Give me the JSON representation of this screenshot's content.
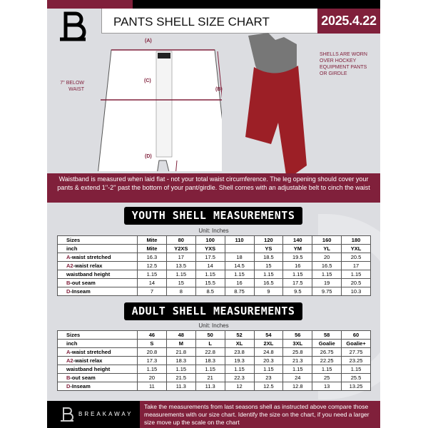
{
  "header": {
    "title": "PANTS SHELL SIZE CHART",
    "date": "2025.4.22"
  },
  "diagram": {
    "label_a": "(A)",
    "label_b": "(B)",
    "label_c": "(C)",
    "label_d": "(D)",
    "below_waist": "7'' BELOW WAIST",
    "note": "SHELLS ARE WORN OVER HOCKEY EQUIPMENT PANTS OR GIRDLE"
  },
  "banner": "Waistband is measured when laid flat - not your total waist circumference. The leg opening should cover your pants & extend 1''-2'' past the bottom of your pant/girdle. Shell comes with an adjustable belt to cinch the waist",
  "youth": {
    "title": "YOUTH SHELL MEASUREMENTS",
    "unit": "Unit: Inches",
    "rows": [
      [
        "Sizes",
        "Mite",
        "80",
        "100",
        "110",
        "120",
        "140",
        "160",
        "180"
      ],
      [
        "inch",
        "Mite",
        "Y2XS",
        "YXS",
        "",
        "YS",
        "YM",
        "YL",
        "YXL"
      ],
      [
        "A-waist stretched",
        "16.3",
        "17",
        "17.5",
        "18",
        "18.5",
        "19.5",
        "20",
        "20.5"
      ],
      [
        "A2-waist relax",
        "12.5",
        "13.5",
        "14",
        "14.5",
        "15",
        "16",
        "16.5",
        "17"
      ],
      [
        "waistband height",
        "1.15",
        "1.15",
        "1.15",
        "1.15",
        "1.15",
        "1.15",
        "1.15",
        "1.15"
      ],
      [
        "B-out seam",
        "14",
        "15",
        "15.5",
        "16",
        "16.5",
        "17.5",
        "19",
        "20.5"
      ],
      [
        "D-Inseam",
        "7",
        "8",
        "8.5",
        "8.75",
        "9",
        "9.5",
        "9.75",
        "10.3"
      ]
    ]
  },
  "adult": {
    "title": "ADULT SHELL MEASUREMENTS",
    "unit": "Unit: Inches",
    "rows": [
      [
        "Sizes",
        "46",
        "48",
        "50",
        "52",
        "54",
        "56",
        "58",
        "60"
      ],
      [
        "inch",
        "S",
        "M",
        "L",
        "XL",
        "2XL",
        "3XL",
        "Goalie",
        "Goalie+"
      ],
      [
        "A-waist stretched",
        "20.8",
        "21.8",
        "22.8",
        "23.8",
        "24.8",
        "25.8",
        "26.75",
        "27.75"
      ],
      [
        "A2-waist relax",
        "17.3",
        "18.3",
        "18.3",
        "19.3",
        "20.3",
        "21.3",
        "22.25",
        "23.25"
      ],
      [
        "waistband height",
        "1.15",
        "1.15",
        "1.15",
        "1.15",
        "1.15",
        "1.15",
        "1.15",
        "1.15"
      ],
      [
        "B-out seam",
        "20",
        "21.5",
        "21",
        "22.3",
        "23",
        "24",
        "25",
        "25.5"
      ],
      [
        "D-Inseam",
        "11",
        "11.3",
        "11.3",
        "12",
        "12.5",
        "12.8",
        "13",
        "13.25"
      ]
    ]
  },
  "footer": {
    "brand": "BREAKAWAY",
    "text": "Take the measurements from last seasons shell as instructed above compare those measurements  with our size chart. Identify the size on the chart, if you need a larger size move up the scale on the chart"
  },
  "colors": {
    "accent": "#80203b",
    "background": "#dcdde1",
    "dark": "#000000"
  }
}
